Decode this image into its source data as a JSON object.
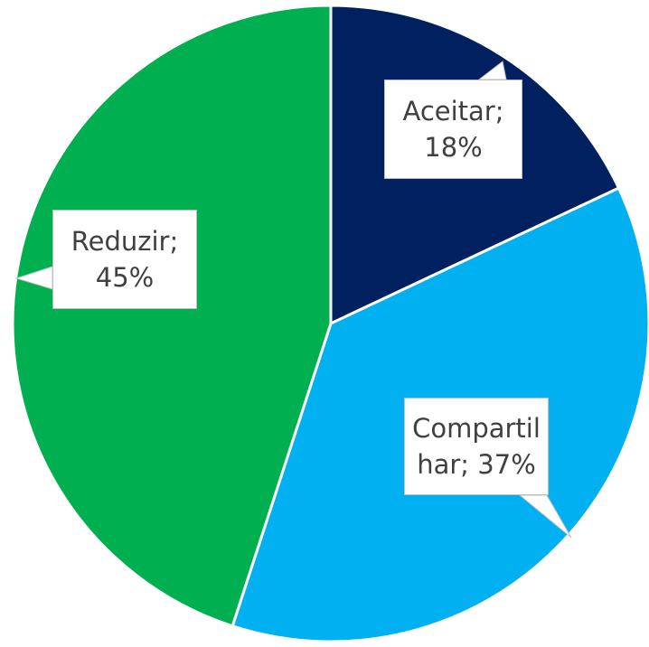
{
  "chart_data": {
    "type": "pie",
    "categories": [
      "Aceitar",
      "Compartilhar",
      "Reduzir"
    ],
    "values": [
      18,
      37,
      45
    ],
    "value_labels": [
      "Aceitar; 18%",
      "Compartilhar; 37%",
      "Reduzir; 45%"
    ],
    "colors": [
      "#002060",
      "#00b0f0",
      "#00b050"
    ]
  }
}
